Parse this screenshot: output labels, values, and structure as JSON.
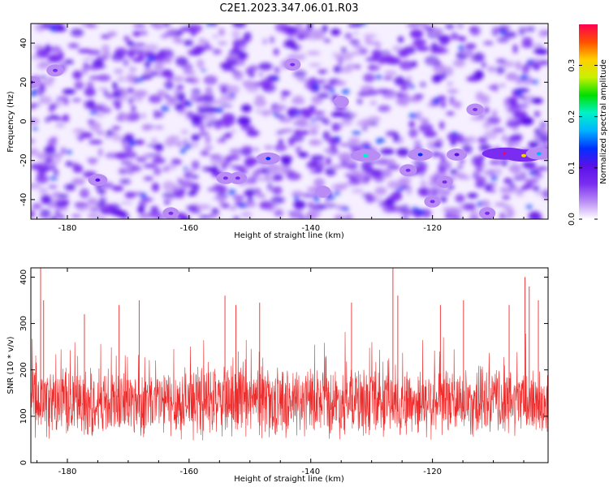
{
  "title": "C2E1.2023.347.06.01.R03",
  "colors": {
    "snr_line": "#ee2b2b",
    "spectrogram_low": "#ffffff",
    "spectrogram_mid": "#7a2df0",
    "colormap": [
      "#ffffff",
      "#b98cf5",
      "#7a2df0",
      "#5a10e8",
      "#0030ff",
      "#00b4ff",
      "#00f2c8",
      "#00e000",
      "#c8f000",
      "#ffd000",
      "#ff5000",
      "#ff0050"
    ]
  },
  "chart_data": [
    {
      "type": "heatmap",
      "xlabel": "Height of straight line (km)",
      "ylabel": "Frequency (Hz)",
      "xlim": [
        -186,
        -101
      ],
      "ylim": [
        -50,
        50
      ],
      "xticks": [
        -180,
        -160,
        -140,
        -120
      ],
      "yticks": [
        -40,
        -20,
        0,
        20,
        40
      ],
      "grid": false,
      "hotspots": [
        {
          "x": -147,
          "y": -19,
          "amp": 0.14
        },
        {
          "x": -131,
          "y": -17.5,
          "amp": 0.2
        },
        {
          "x": -122,
          "y": -17,
          "amp": 0.15
        },
        {
          "x": -116,
          "y": -17,
          "amp": 0.1
        },
        {
          "x": -108,
          "y": -16.5,
          "amp": 0.37
        },
        {
          "x": -105,
          "y": -17.5,
          "amp": 0.3
        },
        {
          "x": -102.5,
          "y": -16.5,
          "amp": 0.16
        },
        {
          "x": -175,
          "y": -30,
          "amp": 0.09
        },
        {
          "x": -154,
          "y": -29,
          "amp": 0.08
        },
        {
          "x": -152,
          "y": -29,
          "amp": 0.08
        },
        {
          "x": -124,
          "y": -25,
          "amp": 0.07
        },
        {
          "x": -118,
          "y": -31,
          "amp": 0.06
        },
        {
          "x": -113,
          "y": 6,
          "amp": 0.07
        },
        {
          "x": -120,
          "y": -41,
          "amp": 0.06
        },
        {
          "x": -138,
          "y": -36,
          "amp": 0.05
        },
        {
          "x": -163,
          "y": -47,
          "amp": 0.06
        },
        {
          "x": -186,
          "y": 20,
          "amp": 0.08
        },
        {
          "x": -182,
          "y": 26,
          "amp": 0.07
        },
        {
          "x": -143,
          "y": 29,
          "amp": 0.06
        },
        {
          "x": -135,
          "y": 10,
          "amp": 0.05
        },
        {
          "x": -111,
          "y": -47,
          "amp": 0.06
        }
      ]
    },
    {
      "type": "colorbar",
      "label": "Normalized spectral amplitude",
      "range": [
        0,
        0.38
      ],
      "ticks": [
        0.0,
        0.1,
        0.2,
        0.3
      ]
    },
    {
      "type": "line",
      "xlabel": "Height of straight line (km)",
      "ylabel": "SNR (10 * v/v)",
      "xlim": [
        -186,
        -101
      ],
      "ylim": [
        0,
        420
      ],
      "xticks": [
        -180,
        -160,
        -140,
        -120
      ],
      "yticks": [
        0,
        100,
        200,
        300,
        400
      ],
      "grid": false,
      "series": [
        {
          "baseline": 130,
          "spread": 70,
          "spikes": [
            {
              "x": -184.4,
              "y": 420
            },
            {
              "x": -183.9,
              "y": 350
            },
            {
              "x": -177.2,
              "y": 320
            },
            {
              "x": -171.5,
              "y": 340
            },
            {
              "x": -168.2,
              "y": 350
            },
            {
              "x": -154.1,
              "y": 360
            },
            {
              "x": -152.3,
              "y": 340
            },
            {
              "x": -148.4,
              "y": 345
            },
            {
              "x": -133.3,
              "y": 345
            },
            {
              "x": -126.5,
              "y": 420
            },
            {
              "x": -125.7,
              "y": 360
            },
            {
              "x": -118.7,
              "y": 340
            },
            {
              "x": -114.9,
              "y": 350
            },
            {
              "x": -107.4,
              "y": 340
            },
            {
              "x": -104.8,
              "y": 400
            },
            {
              "x": -104.1,
              "y": 380
            },
            {
              "x": -102.6,
              "y": 350
            }
          ]
        }
      ]
    }
  ]
}
